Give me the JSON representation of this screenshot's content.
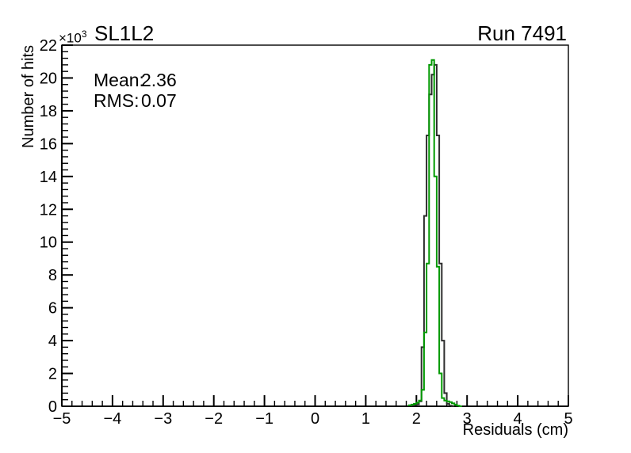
{
  "header": {
    "plot_title": "SL1L2",
    "run_label": "Run 7491",
    "y_axis_exponent_base": "×10",
    "y_axis_exponent": "3"
  },
  "stats_box": {
    "mean_label": "Mean:",
    "mean_value": "2.36",
    "rms_label": "RMS:",
    "rms_value": "0.07"
  },
  "colors": {
    "background": "#ffffff",
    "axis": "#000000",
    "black_histogram": "#2d2d2d",
    "green_histogram": "#009900"
  },
  "chart_data": {
    "type": "bar",
    "subtype": "step-histogram-outline",
    "title": "SL1L2",
    "corner_annotation": "Run 7491",
    "xlabel": "Residuals (cm)",
    "ylabel": "Number of hits",
    "xlim": [
      -5,
      5
    ],
    "ylim_hits": [
      0,
      22000
    ],
    "y_scale_note": "y axis tick labels are in thousands of hits (×10³)",
    "grid": false,
    "legend": false,
    "mean": 2.36,
    "rms": 0.07,
    "x_minor_step": 0.2,
    "y_minor_step_k": 0.4,
    "x_ticks": [
      {
        "v": -5,
        "label": "−5"
      },
      {
        "v": -4,
        "label": "−4"
      },
      {
        "v": -3,
        "label": "−3"
      },
      {
        "v": -2,
        "label": "−2"
      },
      {
        "v": -1,
        "label": "−1"
      },
      {
        "v": 0,
        "label": "0"
      },
      {
        "v": 1,
        "label": "1"
      },
      {
        "v": 2,
        "label": "2"
      },
      {
        "v": 3,
        "label": "3"
      },
      {
        "v": 4,
        "label": "4"
      },
      {
        "v": 5,
        "label": "5"
      }
    ],
    "y_ticks": [
      {
        "v": 0,
        "label": "0"
      },
      {
        "v": 2,
        "label": "2"
      },
      {
        "v": 4,
        "label": "4"
      },
      {
        "v": 6,
        "label": "6"
      },
      {
        "v": 8,
        "label": "8"
      },
      {
        "v": 10,
        "label": "10"
      },
      {
        "v": 12,
        "label": "12"
      },
      {
        "v": 14,
        "label": "14"
      },
      {
        "v": 16,
        "label": "16"
      },
      {
        "v": 18,
        "label": "18"
      },
      {
        "v": 20,
        "label": "20"
      },
      {
        "v": 22,
        "label": "22"
      }
    ],
    "bin_width": 0.05,
    "series": [
      {
        "name": "black-histogram",
        "color": "#2d2d2d",
        "line_width": 2,
        "bins": [
          [
            1.9,
            0.04
          ],
          [
            1.95,
            0.07
          ],
          [
            2.0,
            0.12
          ],
          [
            2.05,
            0.3
          ],
          [
            2.1,
            3.6
          ],
          [
            2.15,
            11.6
          ],
          [
            2.2,
            16.5
          ],
          [
            2.25,
            19.0
          ],
          [
            2.3,
            20.2
          ],
          [
            2.35,
            20.8
          ],
          [
            2.4,
            16.5
          ],
          [
            2.45,
            8.7
          ],
          [
            2.5,
            4.0
          ],
          [
            2.55,
            0.8
          ],
          [
            2.6,
            0.15
          ],
          [
            2.65,
            0.04
          ],
          [
            2.7,
            0
          ]
        ]
      },
      {
        "name": "green-histogram",
        "color": "#009900",
        "line_width": 2,
        "bins": [
          [
            1.85,
            0.06
          ],
          [
            1.9,
            0.1
          ],
          [
            1.95,
            0.15
          ],
          [
            2.0,
            0.22
          ],
          [
            2.05,
            0.35
          ],
          [
            2.1,
            1.0
          ],
          [
            2.15,
            4.5
          ],
          [
            2.2,
            8.7
          ],
          [
            2.25,
            20.8
          ],
          [
            2.3,
            21.1
          ],
          [
            2.35,
            14.0
          ],
          [
            2.4,
            8.5
          ],
          [
            2.45,
            2.0
          ],
          [
            2.5,
            0.5
          ],
          [
            2.55,
            0.35
          ],
          [
            2.6,
            0.3
          ],
          [
            2.65,
            0.25
          ],
          [
            2.7,
            0.18
          ],
          [
            2.75,
            0.1
          ],
          [
            2.8,
            0.04
          ],
          [
            2.85,
            0
          ]
        ]
      }
    ]
  }
}
